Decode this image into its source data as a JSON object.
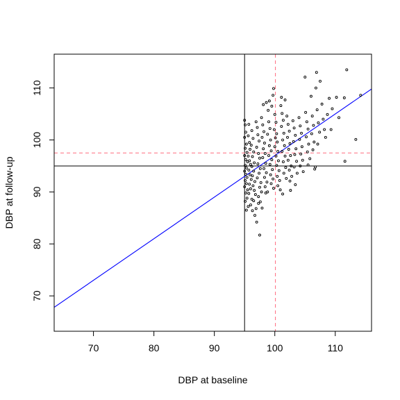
{
  "chart_data": {
    "type": "scatter",
    "title": "",
    "xlabel": "DBP at baseline",
    "ylabel": "DBP at follow-up",
    "xlim": [
      63.5,
      116
    ],
    "ylim": [
      63.2,
      116.5
    ],
    "xticks": [
      70,
      80,
      90,
      100,
      110
    ],
    "yticks": [
      70,
      80,
      90,
      100,
      110
    ],
    "grid": false,
    "legend": "none",
    "reference_lines": [
      {
        "orientation": "vertical",
        "value": 95,
        "style": "solid",
        "color": "#000000"
      },
      {
        "orientation": "horizontal",
        "value": 95,
        "style": "solid",
        "color": "#000000"
      },
      {
        "orientation": "vertical",
        "value": 100.1,
        "style": "dashed",
        "color": "#FF6B7F"
      },
      {
        "orientation": "horizontal",
        "value": 97.5,
        "style": "dashed",
        "color": "#FF6B7F"
      }
    ],
    "regression_line": {
      "intercept": 17.0,
      "slope": 0.8,
      "color": "#0000FF"
    },
    "points": [
      [
        95.0,
        103.8
      ],
      [
        95.1,
        102.9
      ],
      [
        95.2,
        101.5
      ],
      [
        95.0,
        100.5
      ],
      [
        95.3,
        99.2
      ],
      [
        95.1,
        98.4
      ],
      [
        95.4,
        97.6
      ],
      [
        95.0,
        97.0
      ],
      [
        95.2,
        96.2
      ],
      [
        95.5,
        95.8
      ],
      [
        95.1,
        95.1
      ],
      [
        95.3,
        94.6
      ],
      [
        95.0,
        94.0
      ],
      [
        95.2,
        93.4
      ],
      [
        95.4,
        92.8
      ],
      [
        95.1,
        92.2
      ],
      [
        95.3,
        91.6
      ],
      [
        95.0,
        91.0
      ],
      [
        95.5,
        90.4
      ],
      [
        95.2,
        89.8
      ],
      [
        95.4,
        88.8
      ],
      [
        95.1,
        88.2
      ],
      [
        95.6,
        87.2
      ],
      [
        95.3,
        86.5
      ],
      [
        95.7,
        103.0
      ],
      [
        95.6,
        100.8
      ],
      [
        95.8,
        99.5
      ],
      [
        95.9,
        98.2
      ],
      [
        95.6,
        96.9
      ],
      [
        95.8,
        96.0
      ],
      [
        96.0,
        95.3
      ],
      [
        95.7,
        94.2
      ],
      [
        95.9,
        93.3
      ],
      [
        96.1,
        92.4
      ],
      [
        95.8,
        91.5
      ],
      [
        96.0,
        90.6
      ],
      [
        95.7,
        89.7
      ],
      [
        96.2,
        88.6
      ],
      [
        96.0,
        87.5
      ],
      [
        96.3,
        86.4
      ],
      [
        96.2,
        101.8
      ],
      [
        96.4,
        100.3
      ],
      [
        96.1,
        99.0
      ],
      [
        96.5,
        97.7
      ],
      [
        96.3,
        96.8
      ],
      [
        96.6,
        95.6
      ],
      [
        96.2,
        94.9
      ],
      [
        96.5,
        94.0
      ],
      [
        96.3,
        93.1
      ],
      [
        96.7,
        92.0
      ],
      [
        96.4,
        91.2
      ],
      [
        96.6,
        90.3
      ],
      [
        96.8,
        89.5
      ],
      [
        96.5,
        88.3
      ],
      [
        96.9,
        86.8
      ],
      [
        96.7,
        85.5
      ],
      [
        97.0,
        84.2
      ],
      [
        97.3,
        87.8
      ],
      [
        96.9,
        103.5
      ],
      [
        97.1,
        102.4
      ],
      [
        97.2,
        101.0
      ],
      [
        97.4,
        99.8
      ],
      [
        97.0,
        98.6
      ],
      [
        97.3,
        97.4
      ],
      [
        97.5,
        96.5
      ],
      [
        97.2,
        95.4
      ],
      [
        97.6,
        94.5
      ],
      [
        97.4,
        93.6
      ],
      [
        97.1,
        92.7
      ],
      [
        97.7,
        91.8
      ],
      [
        97.5,
        90.9
      ],
      [
        97.8,
        90.0
      ],
      [
        97.3,
        89.1
      ],
      [
        97.6,
        88.1
      ],
      [
        97.9,
        86.9
      ],
      [
        97.5,
        81.7
      ],
      [
        97.8,
        104.3
      ],
      [
        98.0,
        102.9
      ],
      [
        98.2,
        101.6
      ],
      [
        97.9,
        100.5
      ],
      [
        98.3,
        99.4
      ],
      [
        98.1,
        98.3
      ],
      [
        98.4,
        97.4
      ],
      [
        98.0,
        96.6
      ],
      [
        98.5,
        95.5
      ],
      [
        98.2,
        94.5
      ],
      [
        98.6,
        93.7
      ],
      [
        98.3,
        92.8
      ],
      [
        98.7,
        91.9
      ],
      [
        98.4,
        91.0
      ],
      [
        98.8,
        90.0
      ],
      [
        98.5,
        89.8
      ],
      [
        98.1,
        106.8
      ],
      [
        98.6,
        107.2
      ],
      [
        98.9,
        105.7
      ],
      [
        99.0,
        103.5
      ],
      [
        99.2,
        102.2
      ],
      [
        98.8,
        101.1
      ],
      [
        99.3,
        100.0
      ],
      [
        99.1,
        98.9
      ],
      [
        99.4,
        97.9
      ],
      [
        99.0,
        97.0
      ],
      [
        99.5,
        96.2
      ],
      [
        99.2,
        95.3
      ],
      [
        99.6,
        94.3
      ],
      [
        99.3,
        93.3
      ],
      [
        99.7,
        92.5
      ],
      [
        99.4,
        91.6
      ],
      [
        99.8,
        90.7
      ],
      [
        99.1,
        107.5
      ],
      [
        99.5,
        106.5
      ],
      [
        99.8,
        109.9
      ],
      [
        99.7,
        108.6
      ],
      [
        100.0,
        104.9
      ],
      [
        100.2,
        103.4
      ],
      [
        99.9,
        102.0
      ],
      [
        100.3,
        101.2
      ],
      [
        100.1,
        100.4
      ],
      [
        100.4,
        99.6
      ],
      [
        100.0,
        98.7
      ],
      [
        100.5,
        97.8
      ],
      [
        100.2,
        96.9
      ],
      [
        100.6,
        96.0
      ],
      [
        100.3,
        95.1
      ],
      [
        100.7,
        94.1
      ],
      [
        100.4,
        93.0
      ],
      [
        100.8,
        92.2
      ],
      [
        100.5,
        91.2
      ],
      [
        100.9,
        90.4
      ],
      [
        101.0,
        106.6
      ],
      [
        101.2,
        105.1
      ],
      [
        101.4,
        103.8
      ],
      [
        101.1,
        102.6
      ],
      [
        101.5,
        101.3
      ],
      [
        101.3,
        100.0
      ],
      [
        101.6,
        98.9
      ],
      [
        101.2,
        97.8
      ],
      [
        101.7,
        96.9
      ],
      [
        101.4,
        95.8
      ],
      [
        101.8,
        94.7
      ],
      [
        101.5,
        93.6
      ],
      [
        101.9,
        92.6
      ],
      [
        101.3,
        89.6
      ],
      [
        101.1,
        108.2
      ],
      [
        101.7,
        107.7
      ],
      [
        102.0,
        104.6
      ],
      [
        102.2,
        103.0
      ],
      [
        102.4,
        101.7
      ],
      [
        102.1,
        100.5
      ],
      [
        102.5,
        99.3
      ],
      [
        102.3,
        98.2
      ],
      [
        102.6,
        97.0
      ],
      [
        102.2,
        96.1
      ],
      [
        102.7,
        95.0
      ],
      [
        102.4,
        94.2
      ],
      [
        102.8,
        93.0
      ],
      [
        102.5,
        92.1
      ],
      [
        102.6,
        90.3
      ],
      [
        103.0,
        103.7
      ],
      [
        103.2,
        102.3
      ],
      [
        103.4,
        100.9
      ],
      [
        103.1,
        99.7
      ],
      [
        103.5,
        98.3
      ],
      [
        103.3,
        97.2
      ],
      [
        103.6,
        95.9
      ],
      [
        103.2,
        94.8
      ],
      [
        103.7,
        93.6
      ],
      [
        103.4,
        91.4
      ],
      [
        104.0,
        104.3
      ],
      [
        104.2,
        102.7
      ],
      [
        104.4,
        101.3
      ],
      [
        104.1,
        100.1
      ],
      [
        104.5,
        98.7
      ],
      [
        104.3,
        97.3
      ],
      [
        104.6,
        96.1
      ],
      [
        104.2,
        95.0
      ],
      [
        104.7,
        93.9
      ],
      [
        105.0,
        112.1
      ],
      [
        105.1,
        105.3
      ],
      [
        105.3,
        103.5
      ],
      [
        105.5,
        102.1
      ],
      [
        105.2,
        100.6
      ],
      [
        105.6,
        99.2
      ],
      [
        105.4,
        97.7
      ],
      [
        105.8,
        96.4
      ],
      [
        105.5,
        95.2
      ],
      [
        106.0,
        108.4
      ],
      [
        106.2,
        104.6
      ],
      [
        106.4,
        102.8
      ],
      [
        106.1,
        101.2
      ],
      [
        106.5,
        99.6
      ],
      [
        106.3,
        98.1
      ],
      [
        106.7,
        94.8
      ],
      [
        106.6,
        94.4
      ],
      [
        106.9,
        113.0
      ],
      [
        106.8,
        110.0
      ],
      [
        107.0,
        105.8
      ],
      [
        107.2,
        103.3
      ],
      [
        107.4,
        101.5
      ],
      [
        107.1,
        99.2
      ],
      [
        107.5,
        111.3
      ],
      [
        107.8,
        106.9
      ],
      [
        108.0,
        104.0
      ],
      [
        108.2,
        102.0
      ],
      [
        108.4,
        100.5
      ],
      [
        108.7,
        104.9
      ],
      [
        109.0,
        108.0
      ],
      [
        109.3,
        102.0
      ],
      [
        109.5,
        106.0
      ],
      [
        110.2,
        108.2
      ],
      [
        110.6,
        104.3
      ],
      [
        111.5,
        108.1
      ],
      [
        111.9,
        113.5
      ],
      [
        111.6,
        95.9
      ],
      [
        113.4,
        100.1
      ],
      [
        114.2,
        108.6
      ]
    ]
  }
}
